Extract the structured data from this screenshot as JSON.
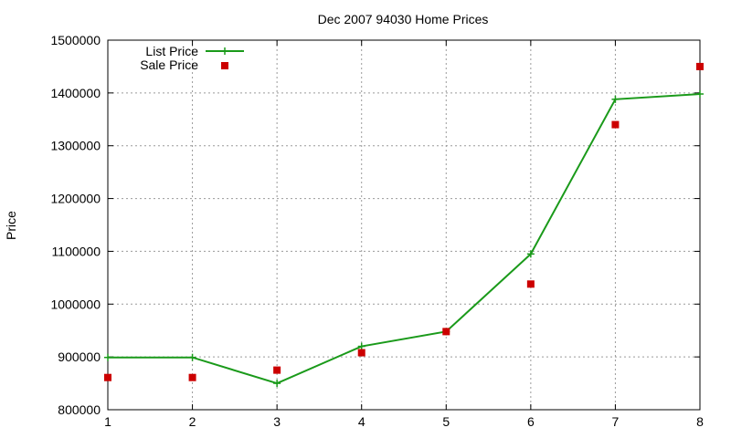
{
  "chart_data": {
    "type": "line",
    "title": "Dec 2007 94030 Home Prices",
    "xlabel": "",
    "ylabel": "Price",
    "x": [
      1,
      2,
      3,
      4,
      5,
      6,
      7,
      8
    ],
    "xlim": [
      1,
      8
    ],
    "ylim": [
      800000,
      1500000
    ],
    "xticks": [
      "1",
      "2",
      "3",
      "4",
      "5",
      "6",
      "7",
      "8"
    ],
    "yticks": [
      "800000",
      "900000",
      "1000000",
      "1100000",
      "1200000",
      "1300000",
      "1400000",
      "1500000"
    ],
    "grid": true,
    "legend_position": "top-left",
    "series": [
      {
        "name": "List Price",
        "style": "line-with-plus-markers",
        "color": "#1a9a1a",
        "values": [
          899000,
          899000,
          850000,
          920000,
          948000,
          1095000,
          1388000,
          1398000
        ]
      },
      {
        "name": "Sale Price",
        "style": "square-markers",
        "color": "#cc0000",
        "values": [
          861000,
          861000,
          875000,
          908000,
          948000,
          1038000,
          1340000,
          1450000
        ]
      }
    ]
  }
}
